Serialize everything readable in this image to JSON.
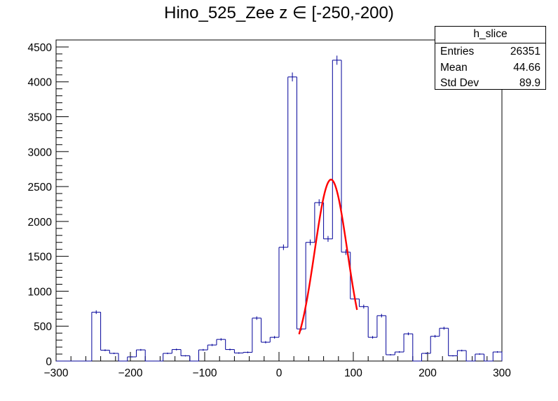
{
  "chart_data": {
    "type": "histogram",
    "title": "Hino_525_Zee z  ∈ [-250,-200)",
    "xlim": [
      -300,
      300
    ],
    "ylim": [
      0,
      4600
    ],
    "xticks": [
      -300,
      -200,
      -100,
      0,
      100,
      200,
      300
    ],
    "yticks": [
      0,
      500,
      1000,
      1500,
      2000,
      2500,
      3000,
      3500,
      4000,
      4500
    ],
    "xtick_labels": [
      "−300",
      "−200",
      "−100",
      "0",
      "100",
      "200",
      "300"
    ],
    "ytick_labels": [
      "0",
      "500",
      "1000",
      "1500",
      "2000",
      "2500",
      "3000",
      "3500",
      "4000",
      "4500"
    ],
    "bin_width": 12,
    "bin_start": -300,
    "counts": [
      0,
      0,
      0,
      0,
      700,
      155,
      110,
      0,
      60,
      160,
      0,
      0,
      110,
      165,
      75,
      0,
      160,
      230,
      310,
      165,
      115,
      125,
      615,
      270,
      340,
      1630,
      4070,
      460,
      1700,
      2270,
      1750,
      4310,
      1560,
      890,
      780,
      340,
      650,
      90,
      130,
      390,
      0,
      110,
      355,
      470,
      75,
      150,
      0,
      100,
      0,
      130
    ],
    "fit": {
      "name": "gaus",
      "constant": 2600,
      "mean": 70,
      "sigma": 22,
      "x_range": [
        27,
        105
      ]
    },
    "colors": {
      "histogram": "#000099",
      "fit": "#ff0000",
      "axis": "#000000"
    },
    "stats": {
      "name": "h_slice",
      "rows": [
        {
          "label": "Entries",
          "value": "26351"
        },
        {
          "label": "Mean",
          "value": "44.66"
        },
        {
          "label": "Std Dev",
          "value": "89.9"
        }
      ]
    }
  }
}
